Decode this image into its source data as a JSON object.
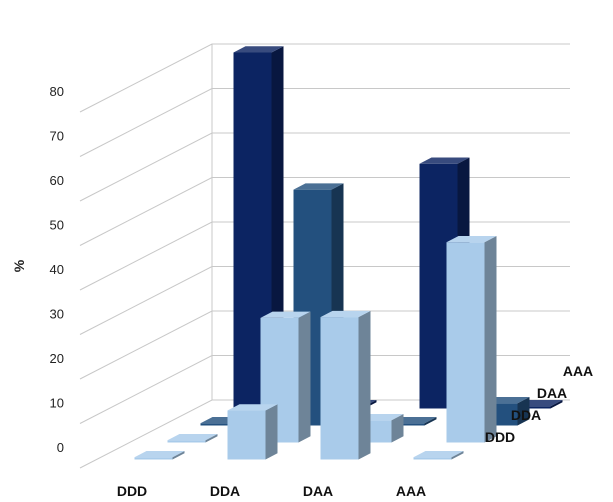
{
  "chart_data": {
    "type": "bar",
    "chart_style": "3d-column",
    "ylabel": "%",
    "ylim": [
      0,
      80
    ],
    "yticks": [
      0,
      10,
      20,
      30,
      40,
      50,
      60,
      70,
      80
    ],
    "x_categories": [
      "DDD",
      "DDA",
      "DAA",
      "AAA"
    ],
    "series": [
      {
        "name": "DDD",
        "color": "#a9cbea",
        "values": [
          0.5,
          11,
          32,
          0.5
        ]
      },
      {
        "name": "DDA",
        "color": "#a9cbea",
        "values": [
          0.5,
          28,
          5,
          45
        ]
      },
      {
        "name": "DAA",
        "color": "#23507e",
        "values": [
          0.5,
          53,
          0.5,
          5
        ]
      },
      {
        "name": "AAA",
        "color": "#0c2462",
        "values": [
          80,
          0.5,
          55,
          0.5
        ]
      }
    ],
    "grid": true
  }
}
